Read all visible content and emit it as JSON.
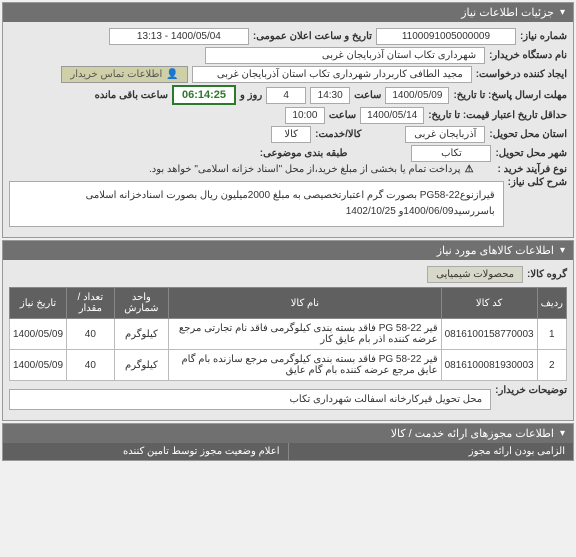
{
  "panel1": {
    "title": "جزئیات اطلاعات نیاز",
    "rows": {
      "need_no_label": "شماره نیاز:",
      "need_no": "1100091005000009",
      "pub_date_label": "تاریخ و ساعت اعلان عمومی:",
      "pub_date": "1400/05/04 - 13:13",
      "buyer_label": "نام دستگاه خریدار:",
      "buyer": "شهرداری تکاب استان آذربایجان غربی",
      "creator_label": "ایجاد کننده درخواست:",
      "creator": "مجید الطافی کاربردار شهرداری تکاب استان آذربایجان غربی",
      "contact": "اطلاعات تماس خریدار",
      "reply_deadline_label": "مهلت ارسال پاسخ: تا تاریخ:",
      "reply_date": "1400/05/09",
      "reply_time_label": "ساعت",
      "reply_time": "14:30",
      "days_label": "روز و",
      "days": "4",
      "remain_label": "ساعت باقی مانده",
      "remain_time": "06:14:25",
      "validity_label": "حداقل تاریخ اعتبار قیمت: تا تاریخ:",
      "validity_date": "1400/05/14",
      "validity_time_label": "ساعت",
      "validity_time": "10:00",
      "province_label": "استان محل تحویل:",
      "province": "آذربایجان غربی",
      "service_label": "کالا/خدمت:",
      "service": "کالا",
      "city_label": "شهر محل تحویل:",
      "city": "تکاب",
      "classify_label": "طبقه بندی موضوعی:",
      "process_label": "نوع فرآیند خرید :",
      "warn_icon": "⚠",
      "warn_text": "پرداخت تمام یا بخشی از مبلغ خرید،از محل \"اسناد خزانه اسلامی\" خواهد بود.",
      "subject_label": "شرح کلی نیاز:",
      "subject": "قیرازنوعPG58-22 بصورت گرم اعتبارتخصیصی به مبلغ 2000میلیون ریال بصورت اسنادخزانه اسلامی باسررسید1400/06/09و 1402/10/25"
    }
  },
  "panel2": {
    "title": "اطلاعات کالاهای مورد نیاز",
    "group_label": "گروه کالا:",
    "group_value": "محصولات شیمیایی",
    "table": {
      "headers": [
        "ردیف",
        "کد کالا",
        "نام کالا",
        "واحد شمارش",
        "تعداد / مقدار",
        "تاریخ نیاز"
      ],
      "rows": [
        [
          "1",
          "0816100158770003",
          "قیر PG 58-22 فاقد بسته بندی کیلوگرمی فاقد نام تجارتی مرجع عرضه کننده اذر بام عایق کار",
          "کیلوگرم",
          "40",
          "1400/05/09"
        ],
        [
          "2",
          "0816100081930003",
          "قیر PG 58-22 فاقد بسته بندی کیلوگرمی مرجع سازنده بام گام عایق مرجع عرضه کننده بام گام عایق",
          "کیلوگرم",
          "40",
          "1400/05/09"
        ]
      ]
    },
    "buyer_note_label": "توضیحات خریدار:",
    "buyer_note": "محل تحویل قیرکارخانه اسفالت شهرداری تکاب"
  },
  "panel3": {
    "title": "اطلاعات مجوزهای ارائه خدمت / کالا"
  },
  "footer": {
    "left": "اعلام وضعیت مجوز توسط تامین کننده",
    "right": "الزامی بودن ارائه مجوز"
  },
  "colors": {
    "header_bg": "#707070",
    "panel_bg": "#e8e8e8",
    "timer_border": "#2a7a2a"
  }
}
